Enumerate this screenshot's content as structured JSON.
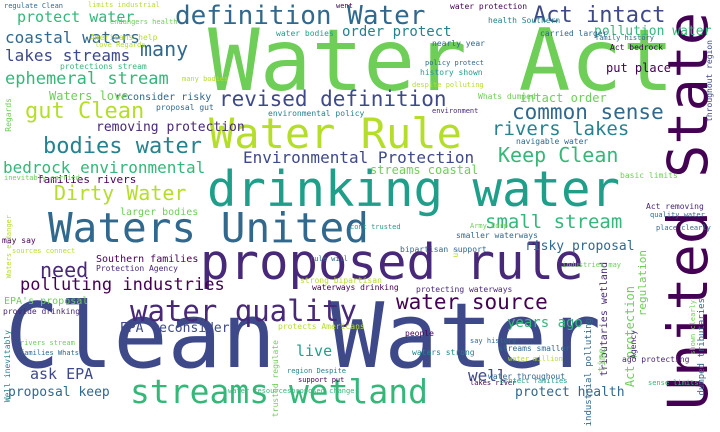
{
  "colors": {
    "background": "#ffffff",
    "palette": [
      "#440154",
      "#482878",
      "#3e4989",
      "#31688e",
      "#26828e",
      "#1f9e89",
      "#35b779",
      "#6ece58",
      "#b5de2b",
      "#fde725"
    ]
  },
  "words": [
    {
      "text": "Clean Water",
      "color": "#3e4989"
    },
    {
      "text": "Water Act",
      "color": "#6ece58"
    },
    {
      "text": "drinking water",
      "color": "#1f9e89"
    },
    {
      "text": "United State",
      "color": "#440154"
    },
    {
      "text": "proposed rule",
      "color": "#482878"
    },
    {
      "text": "Waters United",
      "color": "#31688e"
    },
    {
      "text": "Water Rule",
      "color": "#b5de2b"
    },
    {
      "text": "streams wetland",
      "color": "#35b779"
    },
    {
      "text": "definition Water",
      "color": "#31688e"
    },
    {
      "text": "water quality",
      "color": "#482878"
    },
    {
      "text": "revised definition",
      "color": "#3e4989"
    },
    {
      "text": "Act intact",
      "color": "#3e4989"
    },
    {
      "text": "water source",
      "color": "#440154"
    },
    {
      "text": "common sense",
      "color": "#31688e"
    },
    {
      "text": "Dirty Water",
      "color": "#b5de2b"
    },
    {
      "text": "bodies water",
      "color": "#26828e"
    },
    {
      "text": "gut Clean",
      "color": "#b5de2b"
    },
    {
      "text": "rivers lakes",
      "color": "#26828e"
    },
    {
      "text": "Keep Clean",
      "color": "#35b779"
    },
    {
      "text": "small stream",
      "color": "#35b779"
    },
    {
      "text": "need",
      "color": "#482878"
    },
    {
      "text": "polluting industries",
      "color": "#440154"
    },
    {
      "text": "protect water",
      "color": "#35b779"
    },
    {
      "text": "many",
      "color": "#31688e"
    },
    {
      "text": "ephemeral stream",
      "color": "#35b779"
    },
    {
      "text": "bedrock environmental",
      "color": "#35b779"
    },
    {
      "text": "Environmental Protection",
      "color": "#3e4989"
    },
    {
      "text": "lakes streams",
      "color": "#3e4989"
    },
    {
      "text": "coastal waters",
      "color": "#31688e"
    },
    {
      "text": "order protect",
      "color": "#26828e"
    },
    {
      "text": "pollution water",
      "color": "#35b779"
    },
    {
      "text": "streams coastal",
      "color": "#6ece58"
    },
    {
      "text": "intact order",
      "color": "#6ece58"
    },
    {
      "text": "removing protection",
      "color": "#482878"
    },
    {
      "text": "ask EPA",
      "color": "#3e4989"
    },
    {
      "text": "proposal keep",
      "color": "#31688e"
    },
    {
      "text": "well",
      "color": "#3e4989"
    },
    {
      "text": "years ago",
      "color": "#35b779"
    },
    {
      "text": "live",
      "color": "#1f9e89"
    },
    {
      "text": "protect health",
      "color": "#31688e"
    },
    {
      "text": "EPA reconsider",
      "color": "#3e4989"
    },
    {
      "text": "risky proposal",
      "color": "#31688e"
    },
    {
      "text": "Act protection",
      "color": "#6ece58"
    },
    {
      "text": "regulation",
      "color": "#6ece58"
    },
    {
      "text": "families rivers",
      "color": "#440154"
    },
    {
      "text": "larger bodies",
      "color": "#6ece58"
    },
    {
      "text": "Southern families",
      "color": "#440154"
    },
    {
      "text": "Protection Agency",
      "color": "#482878"
    },
    {
      "text": "put place",
      "color": "#440154"
    },
    {
      "text": "waterways drinking",
      "color": "#440154"
    },
    {
      "text": "protecting waterways",
      "color": "#482878"
    },
    {
      "text": "EPA's proposal",
      "color": "#6ece58"
    },
    {
      "text": "provide drinking",
      "color": "#482878"
    },
    {
      "text": "reconsider risky",
      "color": "#31688e"
    },
    {
      "text": "health Southern",
      "color": "#26828e"
    },
    {
      "text": "water protection",
      "color": "#440154"
    },
    {
      "text": "nearly year",
      "color": "#31688e"
    },
    {
      "text": "water bodies",
      "color": "#1f9e89"
    },
    {
      "text": "Americans help",
      "color": "#b5de2b"
    },
    {
      "text": "protections stream",
      "color": "#35b779"
    },
    {
      "text": "Waters love",
      "color": "#6ece58"
    },
    {
      "text": "limits industrial",
      "color": "#b5de2b"
    },
    {
      "text": "regulate Clean",
      "color": "#31688e"
    },
    {
      "text": "strong bipartisan",
      "color": "#b5de2b"
    },
    {
      "text": "bipartisan support",
      "color": "#31688e"
    },
    {
      "text": "Army Corp",
      "color": "#6ece58"
    },
    {
      "text": "waters strong",
      "color": "#26828e"
    },
    {
      "text": "streams smaller",
      "color": "#31688e"
    },
    {
      "text": "protects Americans",
      "color": "#b5de2b"
    },
    {
      "text": "water throughout",
      "color": "#31688e"
    },
    {
      "text": "water million",
      "color": "#b5de2b"
    },
    {
      "text": "smaller waterways",
      "color": "#31688e"
    },
    {
      "text": "basic limits",
      "color": "#6ece58"
    },
    {
      "text": "tributaries wetland",
      "color": "#482878"
    },
    {
      "text": "industrial polluting",
      "color": "#31688e"
    },
    {
      "text": "Act bedrock",
      "color": "#440154"
    },
    {
      "text": "family history",
      "color": "#31688e"
    },
    {
      "text": "time",
      "color": "#6ece58"
    },
    {
      "text": "people",
      "color": "#440154"
    },
    {
      "text": "Whats dumped",
      "color": "#6ece58"
    },
    {
      "text": "navigable water",
      "color": "#31688e"
    },
    {
      "text": "environmental policy",
      "color": "#26828e"
    },
    {
      "text": "proposal gut",
      "color": "#31688e"
    },
    {
      "text": "love Regards",
      "color": "#b5de2b"
    },
    {
      "text": "history shown",
      "color": "#1f9e89"
    },
    {
      "text": "policy protect",
      "color": "#31688e"
    },
    {
      "text": "carried larger",
      "color": "#31688e"
    },
    {
      "text": "endangers health",
      "color": "#6ece58"
    },
    {
      "text": "inevitably carried",
      "color": "#6ece58"
    },
    {
      "text": "cont trusted",
      "color": "#1f9e89"
    },
    {
      "text": "region Despite",
      "color": "#26828e"
    },
    {
      "text": "support put",
      "color": "#440154"
    },
    {
      "text": "dumped tributaries",
      "color": "#31688e"
    },
    {
      "text": "throughout region",
      "color": "#3e4989"
    },
    {
      "text": "ago protecting",
      "color": "#482878"
    },
    {
      "text": "rivers stream",
      "color": "#6ece58"
    },
    {
      "text": "families Whats",
      "color": "#31688e"
    },
    {
      "text": "lakes river",
      "color": "#440154"
    },
    {
      "text": "sources connect",
      "color": "#b5de2b"
    },
    {
      "text": "may say",
      "color": "#440154"
    },
    {
      "text": "went",
      "color": "#440154"
    },
    {
      "text": "environment",
      "color": "#482878"
    },
    {
      "text": "Act removing",
      "color": "#482878"
    },
    {
      "text": "quality water",
      "color": "#31688e"
    },
    {
      "text": "water resourcesproposed change",
      "color": "#35b779"
    },
    {
      "text": "despite polluting",
      "color": "#b5de2b"
    },
    {
      "text": "rule will",
      "color": "#31688e"
    },
    {
      "text": "industries may",
      "color": "#6ece58"
    },
    {
      "text": "Well inevitably",
      "color": "#26828e"
    },
    {
      "text": "trusted regulate",
      "color": "#6ece58"
    },
    {
      "text": "shown clearly",
      "color": "#6ece58"
    },
    {
      "text": "Waters endanger",
      "color": "#b5de2b"
    },
    {
      "text": "say history",
      "color": "#31688e"
    },
    {
      "text": "Agency",
      "color": "#482878"
    },
    {
      "text": "us",
      "color": "#b5de2b"
    },
    {
      "text": "Regards",
      "color": "#6ece58"
    },
    {
      "text": "place clearly",
      "color": "#31688e"
    },
    {
      "text": "sense limits",
      "color": "#35b779"
    },
    {
      "text": "many bodies",
      "color": "#b5de2b"
    },
    {
      "text": "protect families",
      "color": "#1f9e89"
    }
  ]
}
